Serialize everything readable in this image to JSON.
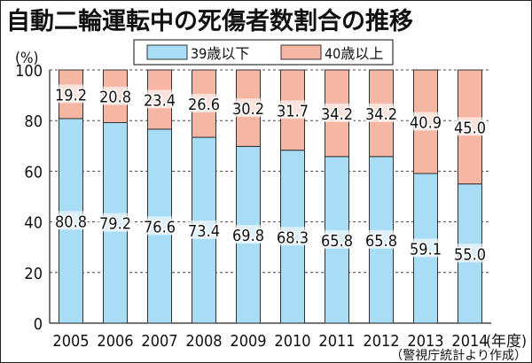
{
  "chart_data": {
    "type": "bar",
    "stacked": true,
    "title": "自動二輪運転中の死傷者数割合の推移",
    "ylabel": "(%)",
    "xlabel_unit": "(年度)",
    "source": "（警視庁統計より作成）",
    "ylim": [
      0,
      100
    ],
    "yticks": [
      0,
      20,
      40,
      60,
      80,
      100
    ],
    "grid": true,
    "legend_position": "top-center",
    "categories": [
      "2005",
      "2006",
      "2007",
      "2008",
      "2009",
      "2010",
      "2011",
      "2012",
      "2013",
      "2014"
    ],
    "series": [
      {
        "name": "39歳以下",
        "color": "#a9ddf6",
        "values": [
          80.8,
          79.2,
          76.6,
          73.4,
          69.8,
          68.3,
          65.8,
          65.8,
          59.1,
          55.0
        ]
      },
      {
        "name": "40歳以上",
        "color": "#f5b6a4",
        "values": [
          19.2,
          20.8,
          23.4,
          26.6,
          30.2,
          31.7,
          34.2,
          34.2,
          40.9,
          45.0
        ]
      }
    ]
  }
}
